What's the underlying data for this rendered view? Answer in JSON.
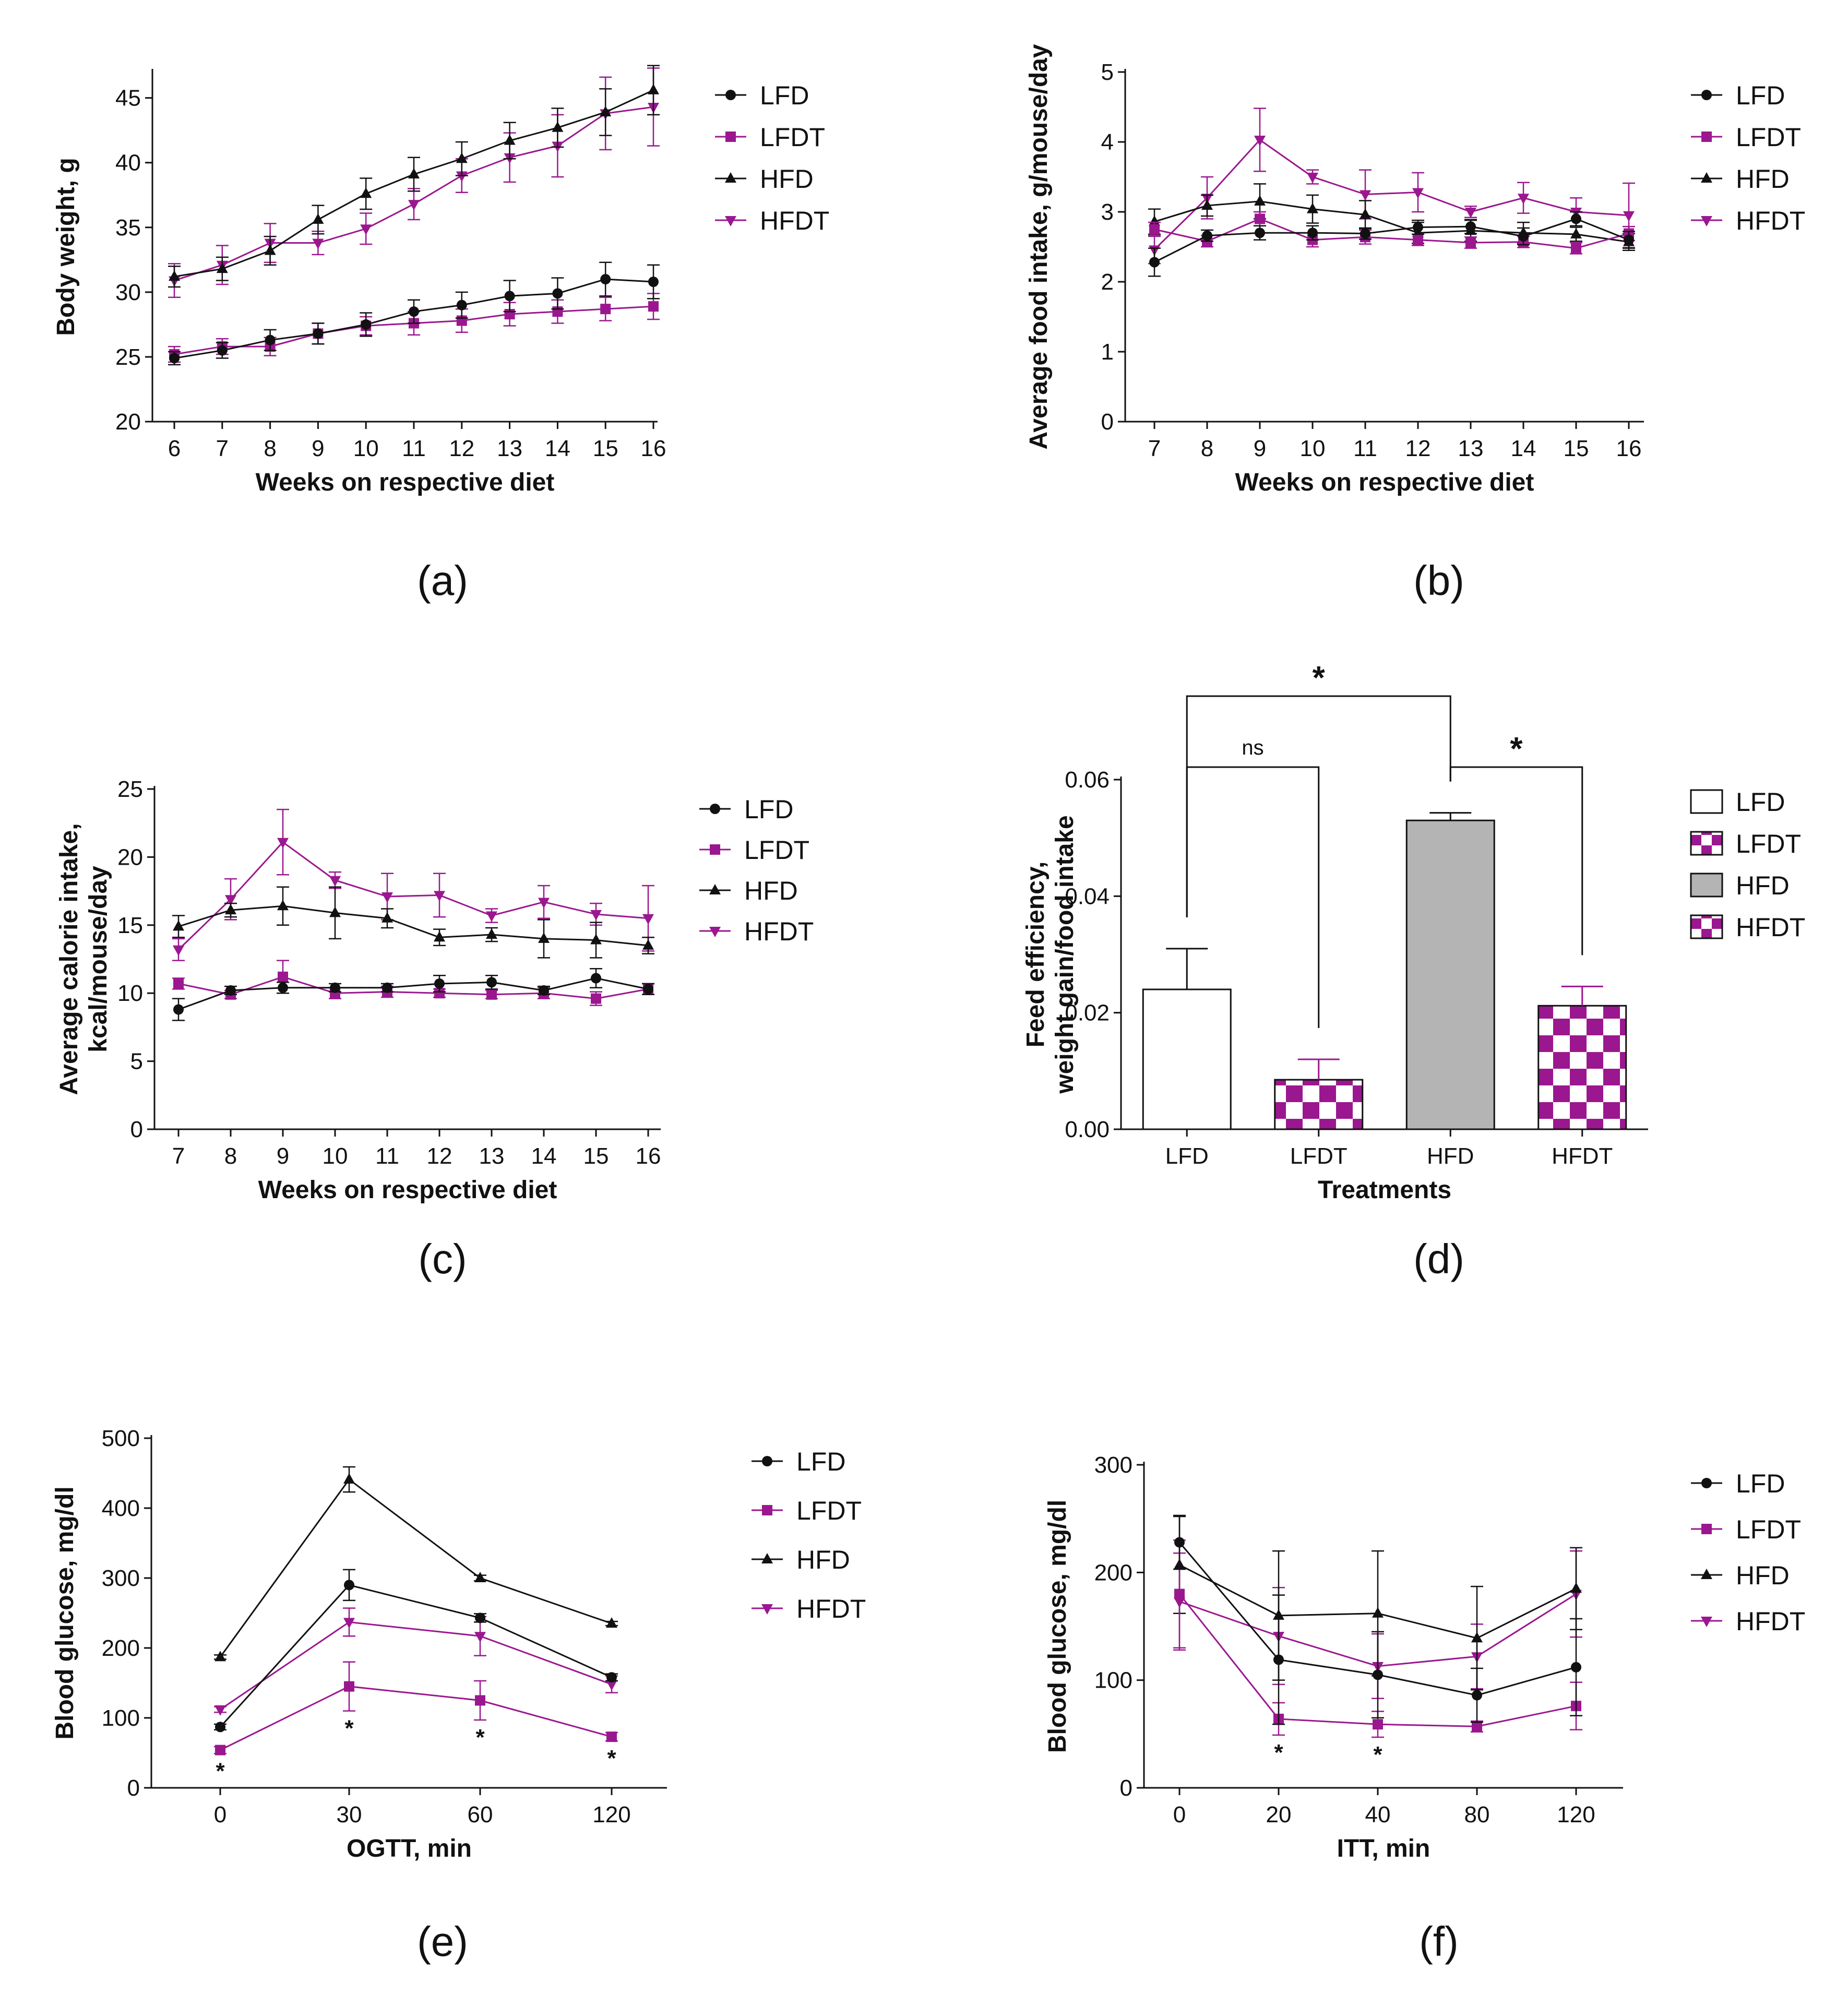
{
  "colors": {
    "LFD": "#111111",
    "LFDT": "#9b178f",
    "HFD": "#111111",
    "HFDT": "#9b178f",
    "hfd_bar": "#b4b4b4"
  },
  "chart_data": [
    {
      "id": "a",
      "type": "line",
      "panel_label": "(a)",
      "xlabel": "Weeks on respective diet",
      "ylabel": "Body weight, g",
      "ylim": [
        20,
        47
      ],
      "yticks": [
        20,
        25,
        30,
        35,
        40,
        45
      ],
      "x": [
        6,
        7,
        8,
        9,
        10,
        11,
        12,
        13,
        14,
        15,
        16
      ],
      "legend": [
        "LFD",
        "LFDT",
        "HFD",
        "HFDT"
      ],
      "series": [
        {
          "name": "LFD",
          "marker": "circle",
          "values": [
            24.9,
            25.5,
            26.3,
            26.8,
            27.5,
            28.5,
            29.0,
            29.7,
            29.9,
            31.0,
            30.8
          ],
          "errors": [
            0.5,
            0.6,
            0.8,
            0.8,
            0.9,
            0.9,
            1.0,
            1.2,
            1.2,
            1.3,
            1.3
          ]
        },
        {
          "name": "LFDT",
          "marker": "square",
          "values": [
            25.2,
            25.8,
            25.8,
            26.8,
            27.4,
            27.6,
            27.8,
            28.3,
            28.5,
            28.7,
            28.9
          ],
          "errors": [
            0.6,
            0.6,
            0.7,
            0.8,
            0.7,
            0.9,
            0.9,
            0.9,
            0.9,
            0.9,
            1.0
          ]
        },
        {
          "name": "HFD",
          "marker": "triangle",
          "values": [
            31.2,
            31.8,
            33.2,
            35.6,
            37.6,
            39.1,
            40.3,
            41.7,
            42.7,
            43.9,
            45.6
          ],
          "errors": [
            0.8,
            0.9,
            1.1,
            1.1,
            1.2,
            1.3,
            1.3,
            1.4,
            1.5,
            1.8,
            1.9
          ]
        },
        {
          "name": "HFDT",
          "marker": "triangle-down",
          "values": [
            30.9,
            32.1,
            33.8,
            33.8,
            34.9,
            36.8,
            39.0,
            40.4,
            41.3,
            43.8,
            44.3
          ],
          "errors": [
            1.3,
            1.5,
            1.5,
            0.9,
            1.2,
            1.2,
            1.3,
            1.9,
            2.4,
            2.8,
            3.0
          ]
        }
      ]
    },
    {
      "id": "b",
      "type": "line",
      "panel_label": "(b)",
      "xlabel": "Weeks on respective diet",
      "ylabel": "Average food intake, g/mouse/day",
      "ylim": [
        0,
        5
      ],
      "yticks": [
        0,
        1,
        2,
        3,
        4,
        5
      ],
      "x": [
        7,
        8,
        9,
        10,
        11,
        12,
        13,
        14,
        15,
        16
      ],
      "legend": [
        "LFD",
        "LFDT",
        "HFD",
        "HFDT"
      ],
      "series": [
        {
          "name": "LFD",
          "marker": "circle",
          "values": [
            2.28,
            2.66,
            2.7,
            2.7,
            2.69,
            2.78,
            2.79,
            2.65,
            2.9,
            2.6
          ],
          "errors": [
            0.2,
            0.08,
            0.1,
            0.1,
            0.08,
            0.1,
            0.1,
            0.12,
            0.1,
            0.12
          ]
        },
        {
          "name": "LFDT",
          "marker": "square",
          "values": [
            2.75,
            2.58,
            2.9,
            2.6,
            2.64,
            2.6,
            2.56,
            2.57,
            2.48,
            2.69
          ],
          "errors": [
            0.1,
            0.08,
            0.1,
            0.1,
            0.1,
            0.08,
            0.08,
            0.08,
            0.08,
            0.1
          ]
        },
        {
          "name": "HFD",
          "marker": "triangle",
          "values": [
            2.86,
            3.09,
            3.15,
            3.04,
            2.96,
            2.7,
            2.73,
            2.7,
            2.68,
            2.57
          ],
          "errors": [
            0.18,
            0.15,
            0.25,
            0.2,
            0.2,
            0.15,
            0.15,
            0.15,
            0.1,
            0.12
          ]
        },
        {
          "name": "HFDT",
          "marker": "triangle-down",
          "values": [
            2.46,
            3.2,
            4.03,
            3.5,
            3.25,
            3.28,
            3.0,
            3.2,
            3.0,
            2.95
          ],
          "errors": [
            0.2,
            0.3,
            0.45,
            0.1,
            0.35,
            0.28,
            0.08,
            0.22,
            0.2,
            0.46
          ]
        }
      ]
    },
    {
      "id": "c",
      "type": "line",
      "panel_label": "(c)",
      "xlabel": "Weeks on respective diet",
      "ylabel": "Average calorie intake, kcal/mouse/day",
      "ylabel_lines": [
        "Average calorie intake,",
        "kcal/mouse/day"
      ],
      "ylim": [
        0,
        25
      ],
      "yticks": [
        0,
        5,
        10,
        15,
        20,
        25
      ],
      "x": [
        7,
        8,
        9,
        10,
        11,
        12,
        13,
        14,
        15,
        16
      ],
      "legend": [
        "LFD",
        "LFDT",
        "HFD",
        "HFDT"
      ],
      "series": [
        {
          "name": "LFD",
          "marker": "circle",
          "values": [
            8.8,
            10.2,
            10.4,
            10.4,
            10.4,
            10.7,
            10.8,
            10.2,
            11.1,
            10.3
          ],
          "errors": [
            0.8,
            0.3,
            0.4,
            0.3,
            0.3,
            0.6,
            0.5,
            0.3,
            0.7,
            0.4
          ]
        },
        {
          "name": "LFDT",
          "marker": "square",
          "values": [
            10.7,
            9.9,
            11.2,
            10.0,
            10.1,
            10.0,
            9.9,
            10.0,
            9.6,
            10.3
          ],
          "errors": [
            0.4,
            0.3,
            1.2,
            0.4,
            0.4,
            0.3,
            0.3,
            0.4,
            0.5,
            0.4
          ]
        },
        {
          "name": "HFD",
          "marker": "triangle",
          "values": [
            14.9,
            16.1,
            16.4,
            15.9,
            15.5,
            14.1,
            14.3,
            14.0,
            13.9,
            13.5
          ],
          "errors": [
            0.8,
            0.5,
            1.4,
            1.9,
            0.7,
            0.6,
            0.5,
            1.4,
            1.3,
            0.6
          ]
        },
        {
          "name": "HFDT",
          "marker": "triangle-down",
          "values": [
            13.2,
            16.9,
            21.1,
            18.3,
            17.1,
            17.2,
            15.7,
            16.7,
            15.8,
            15.5
          ],
          "errors": [
            0.8,
            1.5,
            2.4,
            0.6,
            1.7,
            1.6,
            0.5,
            1.2,
            0.8,
            2.4
          ]
        }
      ]
    },
    {
      "id": "d",
      "type": "bar",
      "panel_label": "(d)",
      "xlabel": "Treatments",
      "ylabel": "Feed efficiency, weight gain/food intake",
      "ylabel_lines": [
        "Feed efficiency,",
        "weight gain/food intake"
      ],
      "ylim": [
        0,
        0.06
      ],
      "yticks": [
        "0.00",
        "0.02",
        "0.04",
        "0.06"
      ],
      "categories": [
        "LFD",
        "LFDT",
        "HFD",
        "HFDT"
      ],
      "values": [
        0.024,
        0.0085,
        0.053,
        0.0212
      ],
      "errors": [
        0.007,
        0.0035,
        0.0013,
        0.0033
      ],
      "fills": [
        "white",
        "checker",
        "gray",
        "checker"
      ],
      "legend": [
        "LFD",
        "LFDT",
        "HFD",
        "HFDT"
      ],
      "annotations": [
        {
          "from": "LFD",
          "to": "HFD",
          "text": "*"
        },
        {
          "from": "LFD",
          "to": "LFDT",
          "text": "ns"
        },
        {
          "from": "HFD",
          "to": "HFDT",
          "text": "*"
        }
      ]
    },
    {
      "id": "e",
      "type": "line",
      "panel_label": "(e)",
      "xlabel": "OGTT, min",
      "ylabel": "Blood glucose, mg/dl",
      "ylim": [
        0,
        500
      ],
      "yticks": [
        0,
        100,
        200,
        300,
        400,
        500
      ],
      "x": [
        "0",
        "30",
        "60",
        "120"
      ],
      "legend": [
        "LFD",
        "LFDT",
        "HFD",
        "HFDT"
      ],
      "series": [
        {
          "name": "LFD",
          "marker": "circle",
          "values": [
            87,
            290,
            243,
            158
          ],
          "errors": [
            4,
            22,
            6,
            5
          ]
        },
        {
          "name": "LFDT",
          "marker": "square",
          "values": [
            54,
            145,
            125,
            73
          ],
          "errors": [
            5,
            35,
            28,
            6
          ]
        },
        {
          "name": "HFD",
          "marker": "triangle",
          "values": [
            187,
            441,
            300,
            235
          ],
          "errors": [
            3,
            18,
            4,
            3
          ]
        },
        {
          "name": "HFDT",
          "marker": "triangle-down",
          "values": [
            112,
            237,
            217,
            148
          ],
          "errors": [
            4,
            20,
            28,
            12
          ]
        }
      ],
      "significance": [
        "*",
        "*",
        "*",
        "*"
      ]
    },
    {
      "id": "f",
      "type": "line",
      "panel_label": "(f)",
      "xlabel": "ITT, min",
      "ylabel": "Blood glucose, mg/dl",
      "ylim": [
        0,
        300
      ],
      "yticks": [
        0,
        100,
        200,
        300
      ],
      "x": [
        "0",
        "20",
        "40",
        "80",
        "120"
      ],
      "legend": [
        "LFD",
        "LFDT",
        "HFD",
        "HFDT"
      ],
      "series": [
        {
          "name": "LFD",
          "marker": "circle",
          "values": [
            228,
            119,
            105,
            86,
            112
          ],
          "errors": [
            25,
            60,
            40,
            25,
            45
          ]
        },
        {
          "name": "LFDT",
          "marker": "square",
          "values": [
            180,
            64,
            59,
            57,
            76
          ],
          "errors": [
            50,
            15,
            12,
            5,
            22
          ]
        },
        {
          "name": "HFD",
          "marker": "triangle",
          "values": [
            207,
            160,
            162,
            139,
            185
          ],
          "errors": [
            45,
            60,
            58,
            48,
            38
          ]
        },
        {
          "name": "HFDT",
          "marker": "triangle-down",
          "values": [
            173,
            141,
            113,
            122,
            180
          ],
          "errors": [
            45,
            45,
            30,
            30,
            40
          ]
        }
      ],
      "significance": [
        "",
        "*",
        "*",
        "",
        ""
      ]
    }
  ]
}
